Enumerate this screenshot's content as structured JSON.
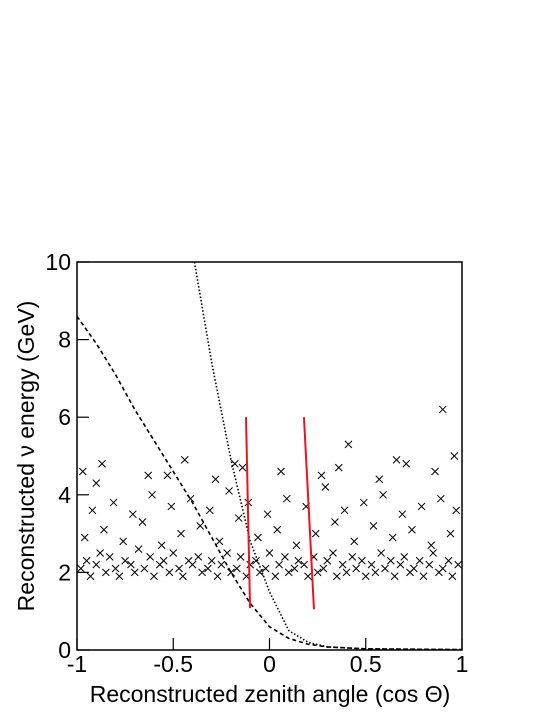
{
  "chart_data": {
    "type": "scatter",
    "xlabel": "Reconstructed zenith angle (cos Θ)",
    "ylabel": "Reconstructed ν energy (GeV)",
    "xlim": [
      -1,
      1
    ],
    "ylim": [
      0,
      10
    ],
    "xticks": [
      -1,
      -0.5,
      0,
      0.5,
      1
    ],
    "yticks": [
      0,
      2,
      4,
      6,
      8,
      10
    ],
    "series": [
      {
        "marker": "x",
        "color": "#000000",
        "x": [
          -0.98,
          -0.95,
          -0.93,
          -0.9,
          -0.88,
          -0.85,
          -0.83,
          -0.8,
          -0.78,
          -0.75,
          -0.72,
          -0.7,
          -0.68,
          -0.65,
          -0.62,
          -0.6,
          -0.57,
          -0.55,
          -0.52,
          -0.5,
          -0.47,
          -0.45,
          -0.42,
          -0.4,
          -0.37,
          -0.35,
          -0.32,
          -0.3,
          -0.27,
          -0.25,
          -0.22,
          -0.2,
          -0.17,
          -0.15,
          -0.12,
          -0.1,
          -0.07,
          -0.05,
          -0.02,
          0.0,
          0.03,
          0.05,
          0.08,
          0.1,
          0.13,
          0.15,
          0.18,
          0.2,
          0.23,
          0.25,
          0.28,
          0.3,
          0.33,
          0.35,
          0.38,
          0.4,
          0.43,
          0.45,
          0.48,
          0.5,
          0.53,
          0.55,
          0.58,
          0.6,
          0.63,
          0.65,
          0.68,
          0.7,
          0.73,
          0.75,
          0.78,
          0.8,
          0.83,
          0.85,
          0.88,
          0.9,
          0.93,
          0.95,
          0.98,
          -0.96,
          -0.86,
          -0.76,
          -0.66,
          -0.56,
          -0.46,
          -0.36,
          -0.26,
          -0.16,
          -0.06,
          0.04,
          0.14,
          0.24,
          0.34,
          0.44,
          0.54,
          0.64,
          0.74,
          0.84,
          0.94,
          -0.92,
          -0.81,
          -0.71,
          -0.61,
          -0.51,
          -0.41,
          -0.31,
          -0.21,
          -0.11,
          -0.01,
          0.09,
          0.19,
          0.29,
          0.39,
          0.49,
          0.59,
          0.69,
          0.79,
          0.89,
          0.97,
          -0.97,
          -0.87,
          -0.63,
          -0.44,
          -0.28,
          -0.14,
          0.06,
          0.27,
          0.41,
          0.57,
          0.71,
          0.86,
          0.96,
          0.9,
          -0.9,
          -0.53,
          -0.18,
          0.36,
          0.66
        ],
        "values": [
          2.1,
          2.3,
          1.9,
          2.2,
          2.5,
          2.0,
          2.4,
          2.1,
          1.9,
          2.3,
          2.2,
          2.0,
          2.6,
          2.1,
          2.4,
          1.9,
          2.2,
          2.3,
          2.0,
          2.5,
          2.1,
          1.9,
          2.3,
          2.2,
          2.4,
          2.0,
          2.1,
          2.3,
          1.9,
          2.2,
          2.5,
          2.0,
          2.1,
          2.4,
          1.9,
          2.2,
          2.3,
          2.0,
          2.1,
          2.5,
          1.9,
          2.2,
          2.4,
          2.0,
          2.1,
          2.3,
          2.2,
          1.9,
          2.4,
          2.0,
          2.1,
          2.3,
          2.5,
          1.9,
          2.2,
          2.0,
          2.4,
          2.1,
          2.3,
          1.9,
          2.2,
          2.0,
          2.5,
          2.1,
          2.3,
          1.9,
          2.2,
          2.4,
          2.0,
          2.1,
          2.3,
          1.9,
          2.2,
          2.5,
          2.0,
          2.1,
          2.3,
          1.9,
          2.2,
          2.9,
          3.1,
          2.8,
          3.3,
          2.7,
          3.0,
          3.2,
          2.8,
          3.4,
          2.9,
          3.1,
          2.7,
          3.0,
          3.3,
          2.8,
          3.2,
          2.9,
          3.1,
          2.7,
          3.0,
          3.6,
          3.8,
          3.5,
          4.0,
          3.7,
          3.9,
          3.6,
          4.1,
          3.8,
          3.5,
          3.9,
          3.7,
          4.2,
          3.6,
          3.8,
          4.0,
          3.5,
          3.7,
          3.9,
          3.6,
          4.6,
          4.8,
          4.5,
          4.9,
          4.4,
          4.7,
          4.6,
          4.5,
          5.3,
          4.4,
          4.8,
          4.6,
          5.0,
          6.2,
          4.3,
          4.5,
          4.8,
          4.7,
          4.9
        ]
      },
      {
        "style": "dashed",
        "color": "#000000",
        "x": [
          -1,
          -0.9,
          -0.8,
          -0.7,
          -0.6,
          -0.5,
          -0.4,
          -0.3,
          -0.2,
          -0.1,
          0,
          0.1,
          0.2,
          0.3,
          0.5,
          1
        ],
        "values": [
          8.6,
          7.9,
          7.1,
          6.2,
          5.4,
          4.6,
          3.8,
          2.9,
          2.0,
          1.2,
          0.6,
          0.3,
          0.15,
          0.08,
          0.03,
          0.01
        ]
      },
      {
        "style": "dotted",
        "color": "#000000",
        "x": [
          -0.39,
          -0.3,
          -0.2,
          -0.1,
          0,
          0.1,
          0.2,
          0.3,
          0.5,
          1
        ],
        "values": [
          10,
          7.4,
          4.9,
          2.8,
          1.5,
          0.5,
          0.2,
          0.08,
          0.03,
          0.01
        ]
      },
      {
        "style": "solid",
        "color": "#e8141e",
        "x": [
          -0.122,
          -0.101
        ],
        "values": [
          6.0,
          1.08
        ]
      },
      {
        "style": "solid",
        "color": "#e8141e",
        "x": [
          0.179,
          0.231
        ],
        "values": [
          6.0,
          1.05
        ]
      }
    ]
  }
}
